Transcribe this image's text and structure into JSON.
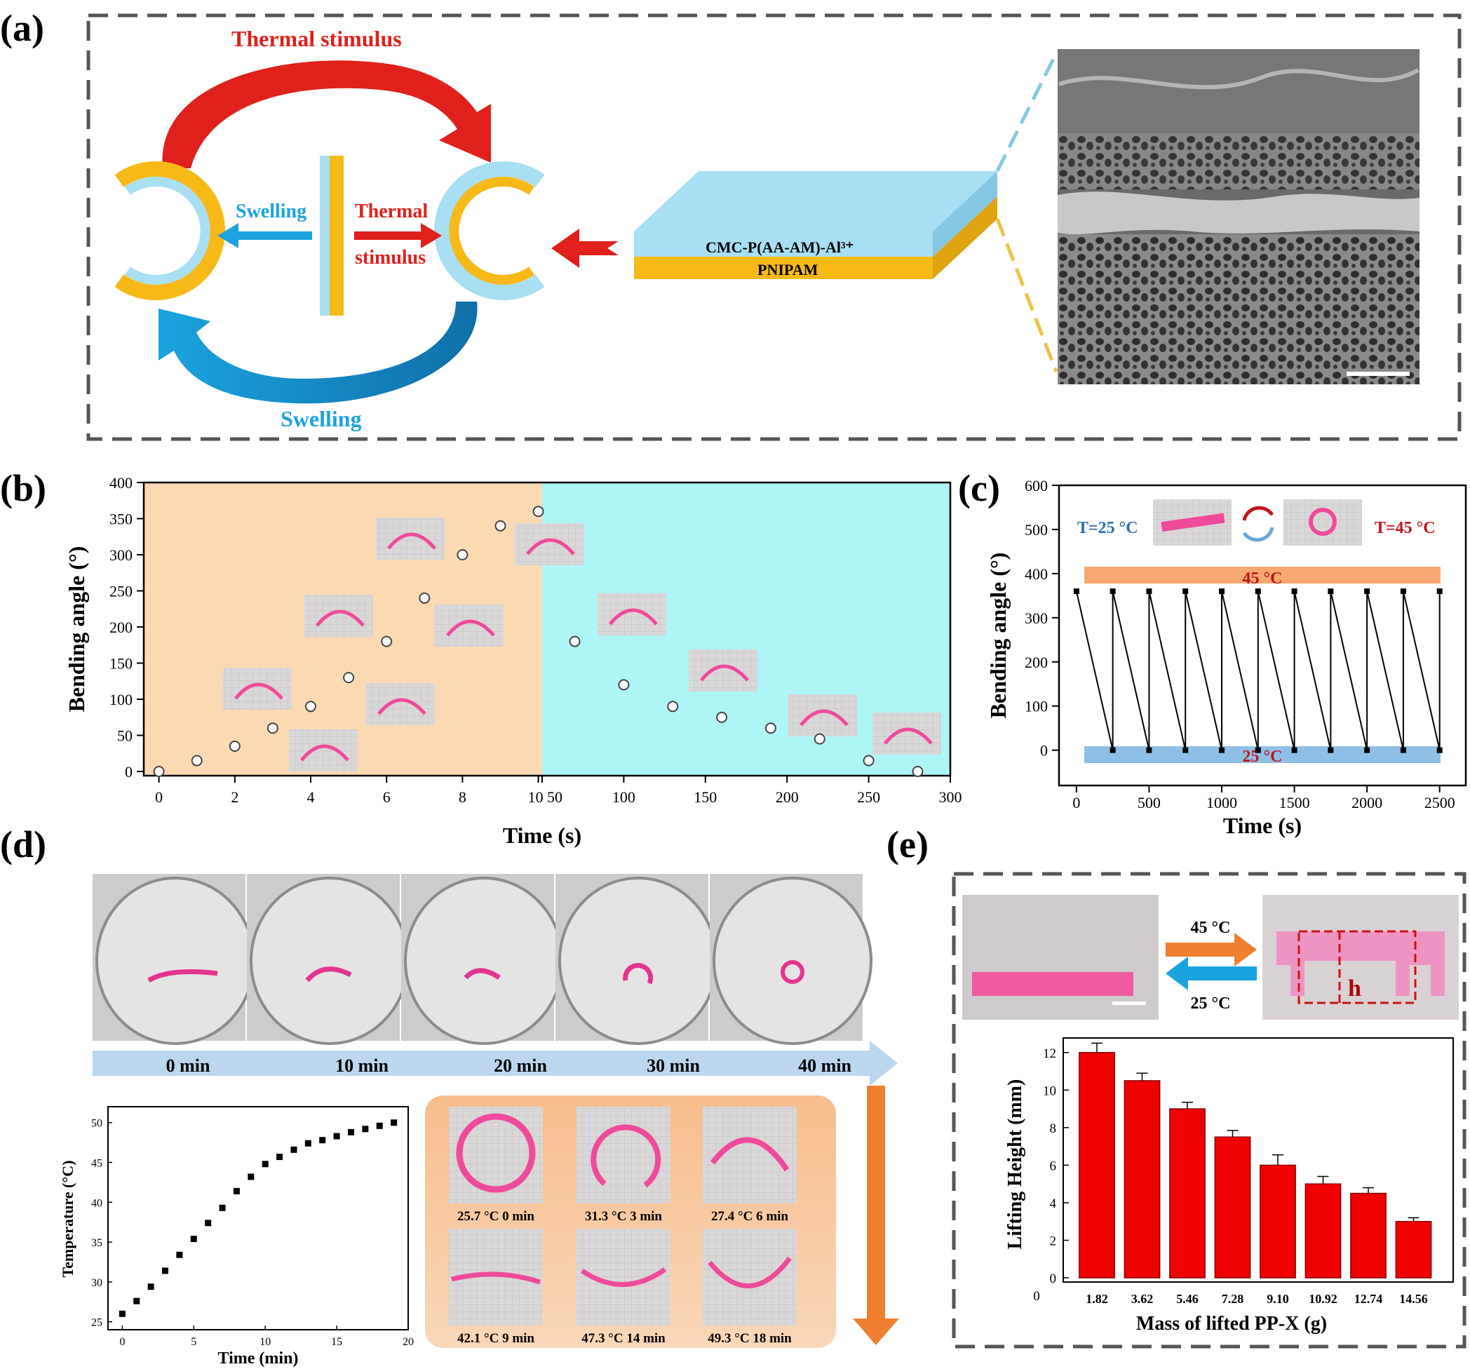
{
  "panels": {
    "a": {
      "label": "(a)"
    },
    "b": {
      "label": "(b)"
    },
    "c": {
      "label": "(c)"
    },
    "d": {
      "label": "(d)"
    },
    "e": {
      "label": "(e)"
    }
  },
  "panel_a": {
    "thermal_top": "Thermal stimulus",
    "swelling_bottom": "Swelling",
    "swelling_mid": "Swelling",
    "thermal_mid_1": "Thermal",
    "thermal_mid_2": "stimulus",
    "layer_top": "CMC-P(AA-AM)-Al³⁺",
    "layer_bottom": "PNIPAM",
    "colors": {
      "red": "#e0201a",
      "blue": "#1ba3e0",
      "yellow": "#f7b918",
      "lightblue": "#a8dff2",
      "sem": "#5f5f5f"
    }
  },
  "panel_c": {
    "t25": "T=25 °C",
    "t45": "T=45 °C",
    "band_hot": "45 °C",
    "band_cold": "25 °C"
  },
  "panel_d": {
    "timeline": [
      "0 min",
      "10 min",
      "20 min",
      "30 min",
      "40 min"
    ],
    "captions": [
      "25.7 °C  0 min",
      "31.3 °C  3 min",
      "27.4 °C  6 min",
      "42.1 °C  9 min",
      "47.3 °C  14 min",
      "49.3 °C  18 min"
    ]
  },
  "panel_e": {
    "up": "45 °C",
    "down": "25 °C",
    "h": "h"
  },
  "chart_data": [
    {
      "id": "b",
      "type": "scatter",
      "xlabel": "Time (s)",
      "ylabel": "Bending angle (°)",
      "ylim": [
        0,
        400
      ],
      "yticks": [
        0,
        50,
        100,
        150,
        200,
        250,
        300,
        350,
        400
      ],
      "segments": [
        {
          "xlim": [
            -0.4,
            10.1
          ],
          "xticks": [
            0,
            2,
            4,
            6,
            8,
            10
          ],
          "x": [
            0,
            1,
            2,
            3,
            4,
            5,
            6,
            7,
            8,
            9,
            10
          ],
          "y": [
            0,
            15,
            35,
            60,
            90,
            130,
            180,
            240,
            300,
            340,
            360
          ]
        },
        {
          "xlim": [
            50,
            300
          ],
          "xticks": [
            50,
            100,
            150,
            200,
            250,
            300
          ],
          "x": [
            70,
            100,
            130,
            160,
            190,
            220,
            250,
            280
          ],
          "y": [
            180,
            120,
            90,
            75,
            60,
            45,
            15,
            0
          ]
        }
      ],
      "tick_labels": [
        "0",
        "2",
        "4",
        "6",
        "8",
        "10",
        "50",
        "100",
        "150",
        "200",
        "250",
        "300"
      ]
    },
    {
      "id": "c",
      "type": "line",
      "xlabel": "Time (s)",
      "ylabel": "Bending angle (°)",
      "xlim": [
        -120,
        2680
      ],
      "ylim": [
        -80,
        600
      ],
      "xticks": [
        0,
        500,
        1000,
        1500,
        2000,
        2500
      ],
      "yticks": [
        0,
        100,
        200,
        300,
        400,
        500,
        600
      ],
      "x": [
        0,
        250,
        250,
        500,
        500,
        750,
        750,
        1000,
        1000,
        1250,
        1250,
        1500,
        1500,
        1750,
        1750,
        2000,
        2000,
        2250,
        2250,
        2500,
        2500
      ],
      "y": [
        360,
        0,
        360,
        0,
        360,
        0,
        360,
        0,
        360,
        0,
        360,
        0,
        360,
        0,
        360,
        0,
        360,
        0,
        360,
        0,
        360
      ]
    },
    {
      "id": "d",
      "type": "scatter",
      "xlabel": "Time (min)",
      "ylabel": "Temperature (°C)",
      "xlim": [
        -1,
        20
      ],
      "ylim": [
        24,
        52
      ],
      "xticks": [
        0,
        5,
        10,
        15,
        20
      ],
      "yticks": [
        25,
        30,
        35,
        40,
        45,
        50
      ],
      "x": [
        0,
        1,
        2,
        3,
        4,
        5,
        6,
        7,
        8,
        9,
        10,
        11,
        12,
        13,
        14,
        15,
        16,
        17,
        18,
        19
      ],
      "y": [
        26.0,
        27.6,
        29.4,
        31.4,
        33.4,
        35.4,
        37.4,
        39.3,
        41.4,
        43.2,
        44.8,
        45.7,
        46.6,
        47.4,
        47.8,
        48.3,
        48.8,
        49.2,
        49.6,
        50.0
      ]
    },
    {
      "id": "e",
      "type": "bar",
      "xlabel": "Mass of lifted PP-X (g)",
      "ylabel": "Lifting Height (mm)",
      "ylim": [
        0,
        13
      ],
      "yticks": [
        0,
        2,
        4,
        6,
        8,
        10,
        12
      ],
      "categories": [
        "1.82",
        "3.62",
        "5.46",
        "7.28",
        "9.10",
        "10.92",
        "12.74",
        "14.56"
      ],
      "values": [
        12.0,
        10.5,
        9.0,
        7.5,
        6.0,
        5.0,
        4.5,
        3.0
      ],
      "errors": [
        0.5,
        0.4,
        0.35,
        0.35,
        0.55,
        0.4,
        0.3,
        0.2
      ],
      "origin_label": "0"
    }
  ]
}
